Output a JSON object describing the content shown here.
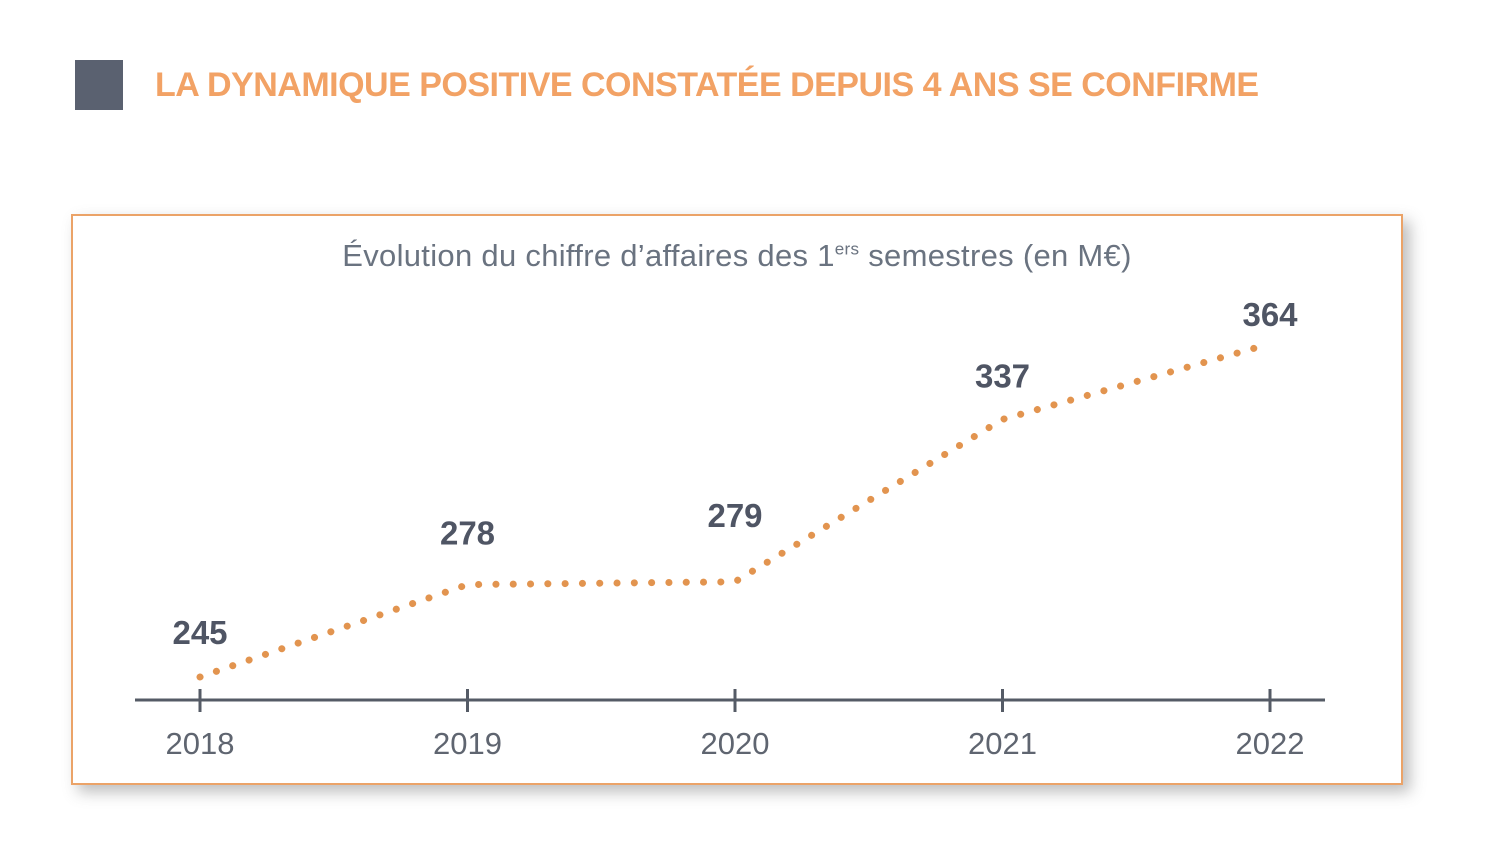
{
  "header": {
    "title": "LA DYNAMIQUE POSITIVE CONSTATÉE DEPUIS 4 ANS SE CONFIRME",
    "accent_color": "#F2A265",
    "square_color": "#5A6170"
  },
  "chart_box": {
    "border_color": "#EBA368",
    "title": {
      "prefix": "Évolution du chiffre d’affaires des 1",
      "superscript": "ers",
      "suffix": " semestres (en M€)"
    }
  },
  "chart_data": {
    "type": "line",
    "line_style": "dotted",
    "title": "Évolution du chiffre d’affaires des 1ers semestres (en M€)",
    "categories": [
      "2018",
      "2019",
      "2020",
      "2021",
      "2022"
    ],
    "values": [
      245,
      278,
      279,
      337,
      364
    ],
    "data_labels": [
      "245",
      "278",
      "279",
      "337",
      "364"
    ],
    "xlabel": "",
    "ylabel": "",
    "ylim": [
      230,
      400
    ],
    "grid": false,
    "legend": "none",
    "line_color": "#E2944F",
    "data_label_color": "#4F5564",
    "axis_color": "#555B66",
    "tick_label_color": "#5F6570",
    "title_color": "#6A7380"
  }
}
